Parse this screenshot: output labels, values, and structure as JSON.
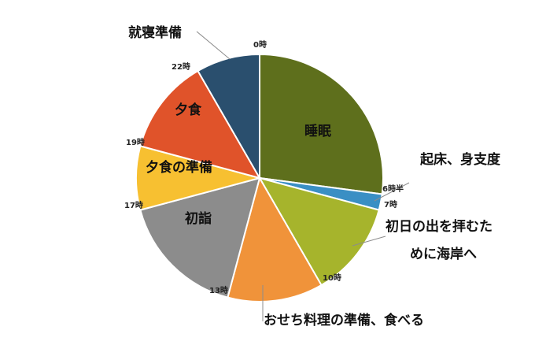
{
  "chart_data": {
    "type": "pie",
    "unit": "hours",
    "start_angle_deg": 0,
    "direction": "clockwise",
    "slices": [
      {
        "label": "睡眠",
        "start": "0時",
        "end": "6時半",
        "value": 6.5,
        "color": "#5e6f1c",
        "label_inside": true
      },
      {
        "label": "起床、身支度",
        "start": "6時半",
        "end": "7時",
        "value": 0.5,
        "color": "#3a8fc4",
        "label_inside": false
      },
      {
        "label": "初日の出を拝むために海岸へ",
        "lines": [
          "初日の出を拝むた",
          "めに海岸へ"
        ],
        "start": "7時",
        "end": "10時",
        "value": 3,
        "color": "#a6b42c",
        "label_inside": false
      },
      {
        "label": "おせち料理の準備、食べる",
        "start": "10時",
        "end": "13時",
        "value": 3,
        "color": "#f0933a",
        "label_inside": false
      },
      {
        "label": "初詣",
        "start": "13時",
        "end": "17時",
        "value": 4,
        "color": "#8c8c8c",
        "label_inside": true
      },
      {
        "label": "夕食の準備",
        "start": "17時",
        "end": "19時",
        "value": 2,
        "color": "#f7c031",
        "label_inside": true
      },
      {
        "label": "夕食",
        "start": "19時",
        "end": "22時",
        "value": 3,
        "color": "#e0532a",
        "label_inside": true
      },
      {
        "label": "就寝準備",
        "start": "22時",
        "end": "0時",
        "value": 2,
        "color": "#2a4f6e",
        "label_inside": false
      }
    ],
    "tick_labels": [
      "0時",
      "6時半",
      "7時",
      "10時",
      "13時",
      "17時",
      "19時",
      "22時"
    ]
  }
}
